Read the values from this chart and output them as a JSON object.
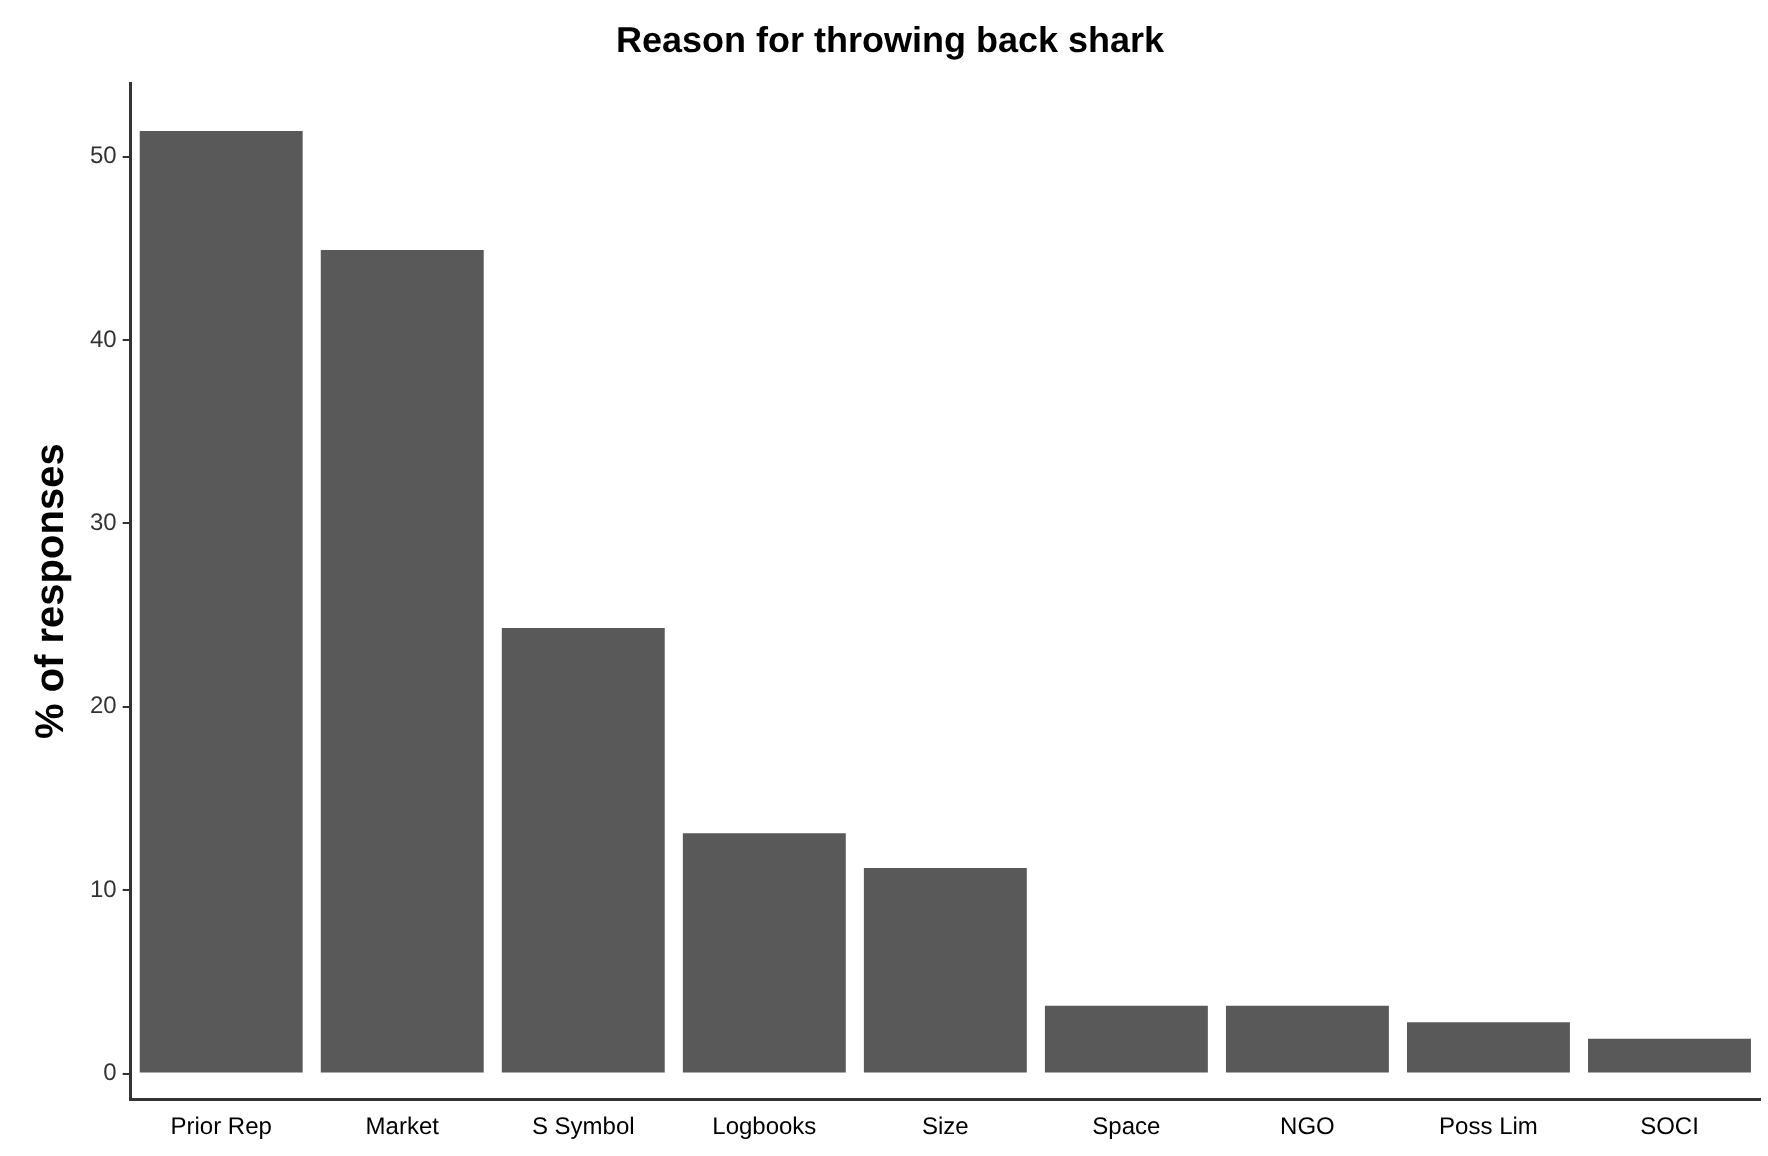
{
  "chart_data": {
    "type": "bar",
    "title": "Reason for throwing back shark",
    "ylabel": "% of responses",
    "categories": [
      "Prior Rep",
      "Market",
      "S Symbol",
      "Logbooks",
      "Size",
      "Space",
      "NGO",
      "Poss Lim",
      "SOCI"
    ],
    "values": [
      51.4,
      44.9,
      24.3,
      13.1,
      11.2,
      3.7,
      3.7,
      2.8,
      1.9
    ],
    "color": "#595959",
    "ylim": [
      -1.4,
      54
    ],
    "yticks": [
      0,
      10,
      20,
      30,
      40,
      50
    ],
    "grid": false,
    "legend": false
  }
}
